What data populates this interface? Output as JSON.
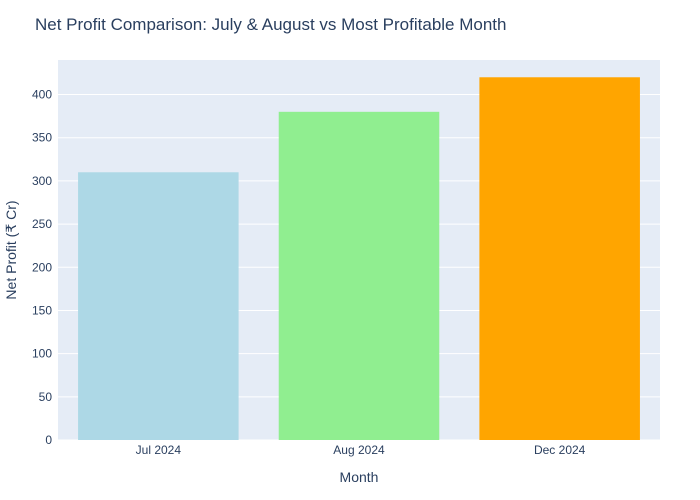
{
  "chart_data": {
    "type": "bar",
    "title": "Net Profit Comparison: July & August vs Most Profitable Month",
    "xlabel": "Month",
    "ylabel": "Net Profit (₹ Cr)",
    "categories": [
      "Jul 2024",
      "Aug 2024",
      "Dec 2024"
    ],
    "values": [
      310,
      380,
      420
    ],
    "bar_colors": [
      "#add8e6",
      "#90ee90",
      "#ffa500"
    ],
    "ylim": [
      0,
      440
    ],
    "yticks": [
      0,
      50,
      100,
      150,
      200,
      250,
      300,
      350,
      400
    ],
    "grid": true,
    "legend": false
  },
  "colors": {
    "plot_background": "#e5ecf6",
    "gridline": "#ffffff",
    "text": "#2a3f5f"
  }
}
